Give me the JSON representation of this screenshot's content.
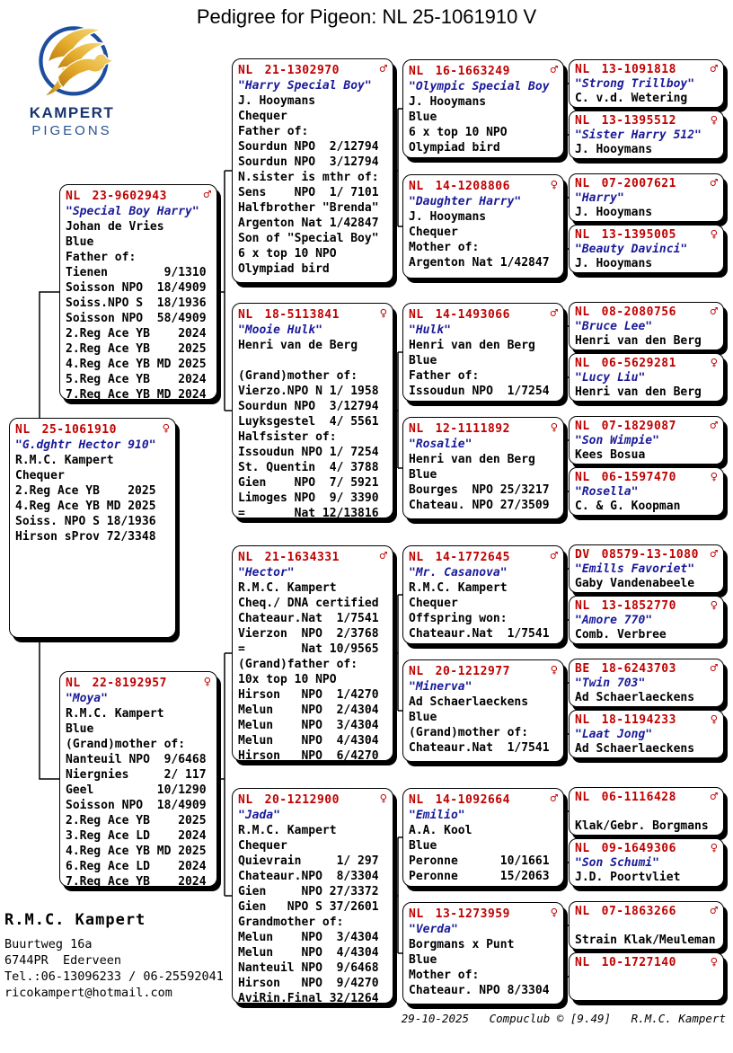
{
  "title": "Pedigree for Pigeon: NL  25-1061910 V",
  "logo": {
    "line1": "KAMPERT",
    "line2": "PIGEONS"
  },
  "colors": {
    "ring_red": "#c00000",
    "name_blue": "#1a1a99",
    "logo_navy": "#16356f",
    "logo_gold": "#d99b1e",
    "line_black": "#000000"
  },
  "footer": {
    "owner": "R.M.C. Kampert",
    "address_lines": [
      "Buurtweg 16a",
      "6744PR  Ederveen",
      "Tel.:06-13096233 / 06-25592041",
      "ricokampert@hotmail.com"
    ],
    "meta": "29-10-2025   Compuclub © [9.49]   R.M.C. Kampert"
  },
  "boxes": [
    {
      "id": "subject",
      "country": "NL",
      "number": "25-1061910",
      "sex": "female",
      "name": "\"G.dghtr Hector 910\"",
      "lines": [
        "R.M.C. Kampert",
        "Chequer",
        "2.Reg Ace YB    2025",
        "4.Reg Ace YB MD 2025",
        "Soiss. NPO S 18/1936",
        "Hirson sProv 72/3348"
      ]
    },
    {
      "id": "f",
      "country": "NL",
      "number": "23-9602943",
      "sex": "male",
      "name": "\"Special Boy Harry\"",
      "lines": [
        "Johan de Vries",
        "Blue",
        "Father of:",
        "Tienen        9/1310",
        "Soisson NPO  18/4909",
        "Soiss.NPO S  18/1936",
        "Soisson NPO  58/4909",
        "2.Reg Ace YB    2024",
        "2.Reg Ace YB    2025",
        "4.Reg Ace YB MD 2025",
        "5.Reg Ace YB    2024",
        "7.Reg Ace YB MD 2024"
      ]
    },
    {
      "id": "m",
      "country": "NL",
      "number": "22-8192957",
      "sex": "female",
      "name": "\"Moya\"",
      "lines": [
        "R.M.C. Kampert",
        "Blue",
        "(Grand)mother of:",
        "Nanteuil NPO  9/6468",
        "Niergnies     2/ 117",
        "Geel         10/1290",
        "Soisson NPO  18/4909",
        "2.Reg Ace YB    2025",
        "3.Reg Ace LD    2024",
        "4.Reg Ace YB MD 2025",
        "6.Reg Ace LD    2024",
        "7.Reg Ace YB    2024"
      ]
    },
    {
      "id": "ff",
      "country": "NL",
      "number": "21-1302970",
      "sex": "male",
      "name": "\"Harry Special Boy\"",
      "lines": [
        "J. Hooymans",
        "Chequer",
        "Father of:",
        "Sourdun NPO  2/12794",
        "Sourdun NPO  3/12794",
        "N.sister is mthr of:",
        "Sens    NPO  1/ 7101",
        "Halfbrother \"Brenda\"",
        "Argenton Nat 1/42847",
        "Son of \"Special Boy\"",
        "6 x top 10 NPO",
        "Olympiad bird"
      ]
    },
    {
      "id": "fm",
      "country": "NL",
      "number": "18-5113841",
      "sex": "female",
      "name": "\"Mooie Hulk\"",
      "lines": [
        "Henri van de Berg",
        "",
        "(Grand)mother of:",
        "Vierzo.NPO N 1/ 1958",
        "Sourdun NPO  3/12794",
        "Luyksgestel  4/ 5561",
        "Halfsister of:",
        "Issoudun NPO 1/ 7254",
        "St. Quentin  4/ 3788",
        "Gien    NPO  7/ 5921",
        "Limoges NPO  9/ 3390",
        "=       Nat 12/13816"
      ]
    },
    {
      "id": "mf",
      "country": "NL",
      "number": "21-1634331",
      "sex": "male",
      "name": "\"Hector\"",
      "lines": [
        "R.M.C. Kampert",
        "Cheq./ DNA certified",
        "Chateaur.Nat  1/7541",
        "Vierzon  NPO  2/3768",
        "=        Nat 10/9565",
        "(Grand)father of:",
        "10x top 10 NPO",
        "Hirson   NPO  1/4270",
        "Melun    NPO  2/4304",
        "Melun    NPO  3/4304",
        "Melun    NPO  4/4304",
        "Hirson   NPO  6/4270"
      ]
    },
    {
      "id": "mm",
      "country": "NL",
      "number": "20-1212900",
      "sex": "female",
      "name": "\"Jada\"",
      "lines": [
        "R.M.C. Kampert",
        "Chequer",
        "Quievrain     1/ 297",
        "Chateaur.NPO  8/3304",
        "Gien     NPO 27/3372",
        "Gien   NPO S 37/2601",
        "Grandmother of:",
        "Melun    NPO  3/4304",
        "Melun    NPO  4/4304",
        "Nanteuil NPO  9/6468",
        "Hirson   NPO  9/4270",
        "AviRin.Final 32/1264"
      ]
    },
    {
      "id": "fff",
      "country": "NL",
      "number": "16-1663249",
      "sex": "male",
      "name": "\"Olympic Special Boy",
      "lines": [
        "J. Hooymans",
        "Blue",
        "6 x top 10 NPO",
        "Olympiad bird"
      ]
    },
    {
      "id": "ffm",
      "country": "NL",
      "number": "14-1208806",
      "sex": "female",
      "name": "\"Daughter Harry\"",
      "lines": [
        "J. Hooymans",
        "Chequer",
        "Mother of:",
        "Argenton Nat 1/42847"
      ]
    },
    {
      "id": "fmf",
      "country": "NL",
      "number": "14-1493066",
      "sex": "male",
      "name": "\"Hulk\"",
      "lines": [
        "Henri van den Berg",
        "Blue",
        "Father of:",
        "Issoudun NPO  1/7254"
      ]
    },
    {
      "id": "fmm",
      "country": "NL",
      "number": "12-1111892",
      "sex": "female",
      "name": "\"Rosalie\"",
      "lines": [
        "Henri van den Berg",
        "Blue",
        "Bourges  NPO 25/3217",
        "Chateau. NPO 27/3509"
      ]
    },
    {
      "id": "mff",
      "country": "NL",
      "number": "14-1772645",
      "sex": "male",
      "name": "\"Mr. Casanova\"",
      "lines": [
        "R.M.C. Kampert",
        "Chequer",
        "Offspring won:",
        "Chateaur.Nat  1/7541"
      ]
    },
    {
      "id": "mfm",
      "country": "NL",
      "number": "20-1212977",
      "sex": "female",
      "name": "\"Minerva\"",
      "lines": [
        "Ad Schaerlaeckens",
        "Blue",
        "(Grand)mother of:",
        "Chateaur.Nat  1/7541"
      ]
    },
    {
      "id": "mmf",
      "country": "NL",
      "number": "14-1092664",
      "sex": "male",
      "name": "\"Emilio\"",
      "lines": [
        "A.A. Kool",
        "Blue",
        "Peronne      10/1661",
        "Peronne      15/2063"
      ]
    },
    {
      "id": "mmm",
      "country": "NL",
      "number": "13-1273959",
      "sex": "female",
      "name": "\"Verda\"",
      "lines": [
        "Borgmans x Punt",
        "Blue",
        "Mother of:",
        "Chateaur. NPO 8/3304"
      ]
    },
    {
      "id": "ffff",
      "country": "NL",
      "number": "13-1091818",
      "sex": "male",
      "name": "\"Strong Trillboy\"",
      "lines": [
        "C. v.d. Wetering"
      ]
    },
    {
      "id": "fffm",
      "country": "NL",
      "number": "13-1395512",
      "sex": "female",
      "name": "\"Sister Harry 512\"",
      "lines": [
        "J. Hooymans"
      ]
    },
    {
      "id": "ffmf",
      "country": "NL",
      "number": "07-2007621",
      "sex": "male",
      "name": "\"Harry\"",
      "lines": [
        "J. Hooymans"
      ]
    },
    {
      "id": "ffmm",
      "country": "NL",
      "number": "13-1395005",
      "sex": "female",
      "name": "\"Beauty Davinci\"",
      "lines": [
        "J. Hooymans"
      ]
    },
    {
      "id": "fmff",
      "country": "NL",
      "number": "08-2080756",
      "sex": "male",
      "name": "\"Bruce Lee\"",
      "lines": [
        "Henri van den Berg"
      ]
    },
    {
      "id": "fmfm",
      "country": "NL",
      "number": "06-5629281",
      "sex": "female",
      "name": "\"Lucy Liu\"",
      "lines": [
        "Henri van den Berg"
      ]
    },
    {
      "id": "fmmf",
      "country": "NL",
      "number": "07-1829087",
      "sex": "male",
      "name": "\"Son Wimpie\"",
      "lines": [
        "Kees Bosua"
      ]
    },
    {
      "id": "fmmm",
      "country": "NL",
      "number": "06-1597470",
      "sex": "female",
      "name": "\"Rosella\"",
      "lines": [
        "C. & G. Koopman"
      ]
    },
    {
      "id": "mfff",
      "country": "DV",
      "number": "08579-13-1080",
      "sex": "male",
      "name": "\"Emills Favoriet\"",
      "lines": [
        "Gaby Vandenabeele"
      ]
    },
    {
      "id": "mffm",
      "country": "NL",
      "number": "13-1852770",
      "sex": "female",
      "name": "\"Amore 770\"",
      "lines": [
        "Comb. Verbree"
      ]
    },
    {
      "id": "mfmf",
      "country": "BE",
      "number": "18-6243703",
      "sex": "male",
      "name": "\"Twin 703\"",
      "lines": [
        "Ad Schaerlaeckens"
      ]
    },
    {
      "id": "mfmm",
      "country": "NL",
      "number": "18-1194233",
      "sex": "female",
      "name": "\"Laat Jong\"",
      "lines": [
        "Ad Schaerlaeckens"
      ]
    },
    {
      "id": "mmff",
      "country": "NL",
      "number": "06-1116428",
      "sex": "male",
      "name": "",
      "lines": [
        "Klak/Gebr. Borgmans"
      ]
    },
    {
      "id": "mmfm",
      "country": "NL",
      "number": "09-1649306",
      "sex": "female",
      "name": "\"Son Schumi\"",
      "lines": [
        "J.D. Poortvliet"
      ]
    },
    {
      "id": "mmmf",
      "country": "NL",
      "number": "07-1863266",
      "sex": "male",
      "name": "",
      "lines": [
        "Strain Klak/Meuleman"
      ]
    },
    {
      "id": "mmmm",
      "country": "NL",
      "number": "10-1727140",
      "sex": "female",
      "name": "",
      "lines": []
    }
  ]
}
